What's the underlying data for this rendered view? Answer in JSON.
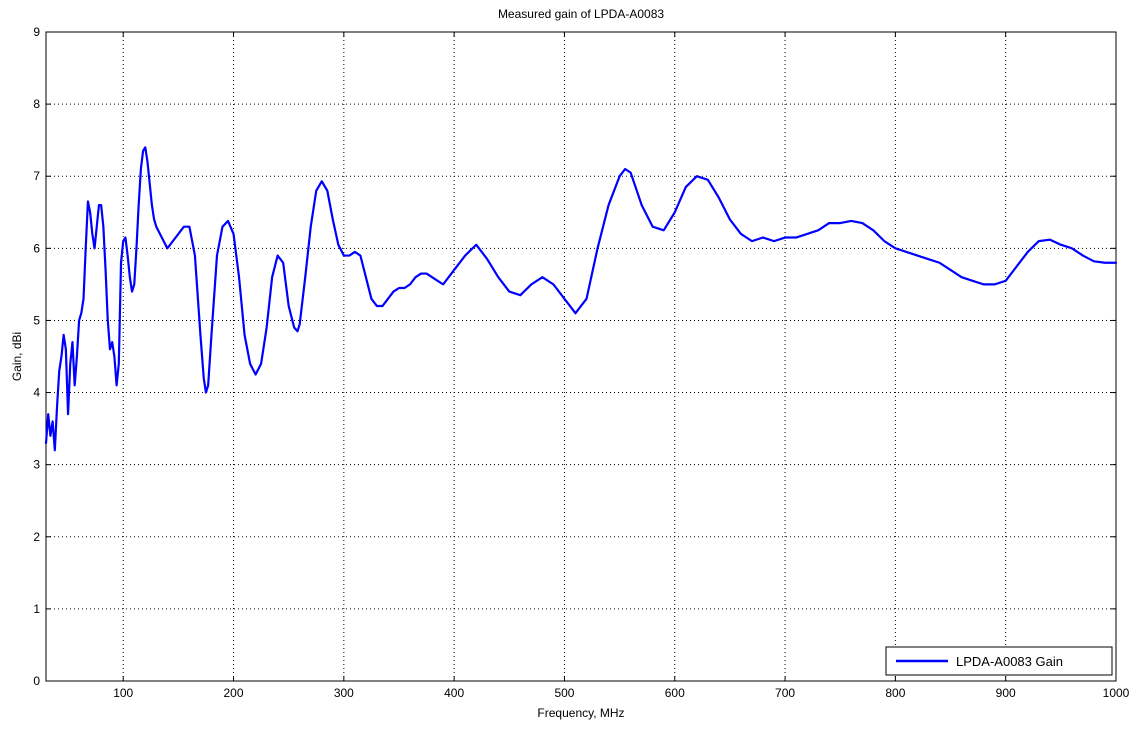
{
  "chart_data": {
    "type": "line",
    "title": "Measured gain of LPDA-A0083",
    "xlabel": "Frequency, MHz",
    "ylabel": "Gain, dBi",
    "xlim": [
      30,
      1000
    ],
    "ylim": [
      0,
      9
    ],
    "x_ticks": [
      100,
      200,
      300,
      400,
      500,
      600,
      700,
      800,
      900,
      1000
    ],
    "y_ticks": [
      0,
      1,
      2,
      3,
      4,
      5,
      6,
      7,
      8,
      9
    ],
    "grid": true,
    "legend_position": "bottom-right",
    "series": [
      {
        "name": "LPDA-A0083 Gain",
        "color": "#0000ff",
        "x": [
          30,
          32,
          34,
          36,
          38,
          40,
          42,
          44,
          46,
          48,
          50,
          52,
          54,
          56,
          58,
          60,
          62,
          64,
          66,
          68,
          70,
          72,
          74,
          76,
          78,
          80,
          82,
          84,
          86,
          88,
          90,
          92,
          94,
          96,
          98,
          100,
          102,
          104,
          106,
          108,
          110,
          112,
          114,
          116,
          118,
          120,
          122,
          124,
          126,
          128,
          130,
          135,
          140,
          145,
          150,
          155,
          160,
          165,
          170,
          173,
          175,
          177,
          180,
          185,
          190,
          195,
          200,
          205,
          210,
          215,
          220,
          225,
          230,
          235,
          240,
          245,
          250,
          255,
          258,
          260,
          265,
          270,
          275,
          280,
          285,
          290,
          295,
          300,
          305,
          310,
          315,
          320,
          325,
          330,
          335,
          340,
          345,
          350,
          355,
          360,
          365,
          370,
          375,
          380,
          385,
          390,
          395,
          400,
          410,
          420,
          430,
          440,
          450,
          460,
          470,
          480,
          490,
          500,
          510,
          520,
          530,
          540,
          550,
          555,
          560,
          570,
          580,
          590,
          600,
          610,
          620,
          630,
          640,
          650,
          660,
          670,
          680,
          690,
          700,
          710,
          720,
          730,
          740,
          750,
          760,
          770,
          780,
          790,
          800,
          810,
          820,
          830,
          840,
          850,
          860,
          870,
          880,
          890,
          900,
          910,
          920,
          930,
          940,
          950,
          960,
          970,
          980,
          990,
          1000
        ],
        "values": [
          3.3,
          3.7,
          3.4,
          3.6,
          3.2,
          3.8,
          4.3,
          4.5,
          4.8,
          4.6,
          3.7,
          4.4,
          4.7,
          4.1,
          4.5,
          5.0,
          5.1,
          5.3,
          6.0,
          6.65,
          6.5,
          6.2,
          6.0,
          6.3,
          6.6,
          6.6,
          6.3,
          5.7,
          5.0,
          4.6,
          4.7,
          4.5,
          4.1,
          4.4,
          5.8,
          6.1,
          6.15,
          5.9,
          5.6,
          5.4,
          5.5,
          6.0,
          6.6,
          7.1,
          7.35,
          7.4,
          7.2,
          6.9,
          6.6,
          6.4,
          6.3,
          6.15,
          6.0,
          6.1,
          6.2,
          6.3,
          6.3,
          5.9,
          4.8,
          4.2,
          4.0,
          4.1,
          4.8,
          5.9,
          6.3,
          6.38,
          6.2,
          5.6,
          4.8,
          4.4,
          4.25,
          4.4,
          4.9,
          5.6,
          5.9,
          5.8,
          5.2,
          4.9,
          4.85,
          4.95,
          5.6,
          6.3,
          6.8,
          6.93,
          6.8,
          6.4,
          6.05,
          5.9,
          5.9,
          5.95,
          5.9,
          5.6,
          5.3,
          5.2,
          5.2,
          5.3,
          5.4,
          5.45,
          5.45,
          5.5,
          5.6,
          5.65,
          5.65,
          5.6,
          5.55,
          5.5,
          5.6,
          5.7,
          5.9,
          6.05,
          5.85,
          5.6,
          5.4,
          5.35,
          5.5,
          5.6,
          5.5,
          5.3,
          5.1,
          5.3,
          6.0,
          6.6,
          7.0,
          7.1,
          7.05,
          6.6,
          6.3,
          6.25,
          6.5,
          6.85,
          7.0,
          6.95,
          6.7,
          6.4,
          6.2,
          6.1,
          6.15,
          6.1,
          6.15,
          6.15,
          6.2,
          6.25,
          6.35,
          6.35,
          6.38,
          6.35,
          6.25,
          6.1,
          6.0,
          5.95,
          5.9,
          5.85,
          5.8,
          5.7,
          5.6,
          5.55,
          5.5,
          5.5,
          5.55,
          5.75,
          5.95,
          6.1,
          6.12,
          6.05,
          6.0,
          5.9,
          5.82,
          5.8,
          5.8
        ]
      }
    ]
  }
}
